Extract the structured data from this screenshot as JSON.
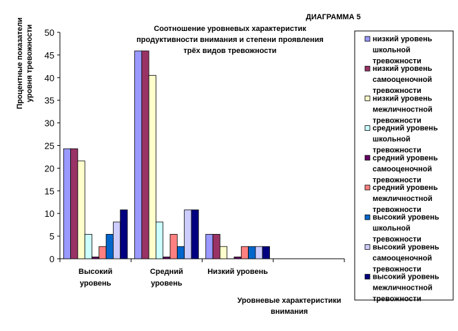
{
  "chart_data": {
    "type": "bar",
    "heading": "ДИАГРАММА 5",
    "title": [
      "Соотношение уровневых характеристик",
      "продуктивности внимания и степени проявления",
      "трёх видов тревожности"
    ],
    "ylabel": [
      "Процентные показатели",
      "уровня тревожности"
    ],
    "xlabel": [
      "Уровневые характеристики",
      "внимания"
    ],
    "ylim": [
      0,
      50
    ],
    "yticks": [
      "0",
      "5",
      "10",
      "15",
      "20",
      "25",
      "30",
      "35",
      "40",
      "45",
      "50"
    ],
    "categories": [
      [
        "Высокий",
        "уровень"
      ],
      [
        "Средний",
        "уровень"
      ],
      [
        "Низкий уровень"
      ],
      [
        ""
      ]
    ],
    "grid": false,
    "legend_position": "right",
    "series": [
      {
        "name": [
          "низкий уровень",
          "школьной",
          "тревожности"
        ],
        "color": "#9999ff",
        "values": [
          24.3,
          45.9,
          5.4,
          0
        ]
      },
      {
        "name": [
          "низкий уровень",
          "самооценочной",
          "тревожности"
        ],
        "color": "#993366",
        "values": [
          24.3,
          45.9,
          5.4,
          0
        ]
      },
      {
        "name": [
          "низкий уровень",
          "межличностной",
          "тревожности"
        ],
        "color": "#ffffcc",
        "values": [
          21.6,
          40.5,
          2.7,
          0
        ]
      },
      {
        "name": [
          "средний уровень",
          "школьной",
          "тревожности"
        ],
        "color": "#ccffff",
        "values": [
          5.4,
          8.1,
          0,
          0
        ]
      },
      {
        "name": [
          "средний уровень",
          "самооценочной",
          "тревожности"
        ],
        "color": "#660066",
        "values": [
          0.4,
          0.4,
          0.4,
          0
        ]
      },
      {
        "name": [
          "средний уровень",
          "межличностной",
          "тревожности"
        ],
        "color": "#ff8080",
        "values": [
          2.7,
          5.4,
          2.7,
          0
        ]
      },
      {
        "name": [
          "высокий уровень",
          "школьной",
          "тревожности"
        ],
        "color": "#0066cc",
        "values": [
          5.4,
          2.7,
          2.7,
          0
        ]
      },
      {
        "name": [
          "высокий уровень",
          "самооценочной",
          "тревожности"
        ],
        "color": "#ccccff",
        "values": [
          8.1,
          10.8,
          2.7,
          0
        ]
      },
      {
        "name": [
          "высокий уровень",
          "межличностной",
          "тревожности"
        ],
        "color": "#000080",
        "values": [
          10.8,
          10.8,
          2.7,
          0
        ]
      }
    ]
  }
}
